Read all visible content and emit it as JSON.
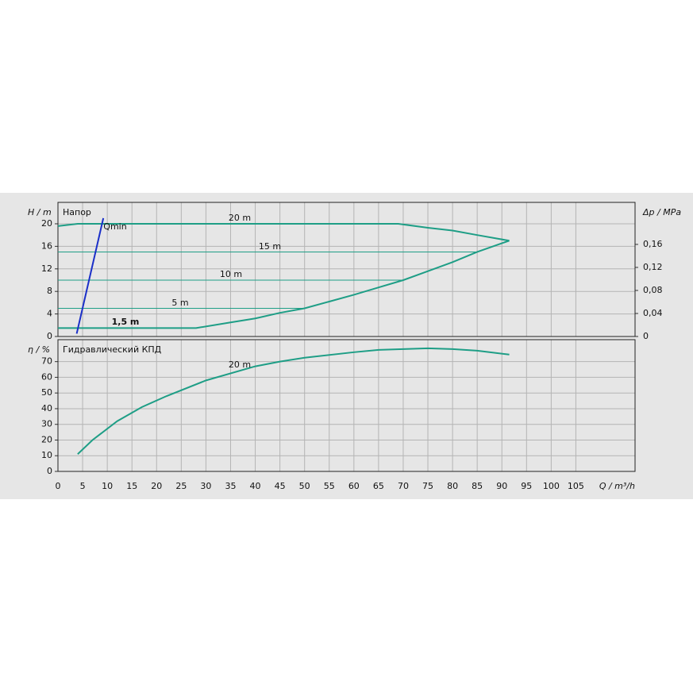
{
  "chart_data": [
    {
      "type": "line",
      "y_label": "H / m",
      "panel_title": "Напор",
      "y2_label": "Δp / MPa",
      "ylim": [
        0,
        23.8
      ],
      "yticks": [
        0,
        4,
        8,
        12,
        16,
        20
      ],
      "y2lim": [
        0,
        0.233
      ],
      "y2ticks": [
        0,
        {
          "value": 0.04,
          "label": "0,04"
        },
        {
          "value": 0.08,
          "label": "0,08"
        },
        {
          "value": 0.12,
          "label": "0,12"
        },
        {
          "value": 0.16,
          "label": "0,16"
        }
      ],
      "grid": true,
      "series": [
        {
          "name": "20 m",
          "color": "#1e9e86",
          "x": [
            0,
            4,
            69,
            75,
            80,
            85,
            91.5
          ],
          "values": [
            19.6,
            20,
            20,
            19.3,
            18.8,
            18,
            17
          ]
        },
        {
          "name": "15 m",
          "color": "#1e9e86",
          "x": [
            0,
            85
          ],
          "values": [
            15,
            15
          ]
        },
        {
          "name": "10 m",
          "color": "#1e9e86",
          "x": [
            0,
            70
          ],
          "values": [
            10,
            10
          ]
        },
        {
          "name": "5 m",
          "color": "#1e9e86",
          "x": [
            0,
            50
          ],
          "values": [
            5,
            5
          ]
        },
        {
          "name": "1,5 m",
          "color": "#1e9e86",
          "x": [
            0,
            28,
            35,
            40,
            45,
            50,
            55,
            60,
            65,
            70,
            75,
            80,
            85,
            91.5
          ],
          "values": [
            1.5,
            1.5,
            2.5,
            3.2,
            4.2,
            5,
            6.2,
            7.4,
            8.7,
            10,
            11.6,
            13.2,
            15,
            17
          ]
        },
        {
          "name": "Qmin",
          "color": "#1a2fc8",
          "x": [
            3.8,
            9.2
          ],
          "values": [
            0.5,
            21
          ]
        }
      ]
    },
    {
      "type": "line",
      "y_label": "η / %",
      "panel_title": "Гидравлический КПД",
      "x_label": "Q / m³/h",
      "xlim": [
        0,
        117
      ],
      "xticks": [
        0,
        5,
        10,
        15,
        20,
        25,
        30,
        35,
        40,
        45,
        50,
        55,
        60,
        65,
        70,
        75,
        80,
        85,
        90,
        95,
        100,
        105
      ],
      "ylim": [
        0,
        84
      ],
      "yticks": [
        0,
        10,
        20,
        30,
        40,
        50,
        60,
        70
      ],
      "grid": true,
      "series": [
        {
          "name": "20 m",
          "color": "#1e9e86",
          "x": [
            4,
            7,
            12,
            17,
            22,
            30,
            40,
            45,
            50,
            60,
            65,
            70,
            75,
            80,
            85,
            91.5
          ],
          "values": [
            11,
            20,
            32,
            41,
            48,
            58,
            67,
            70,
            72.5,
            76,
            77.5,
            78,
            78.5,
            78,
            77,
            74.5
          ]
        }
      ]
    }
  ]
}
